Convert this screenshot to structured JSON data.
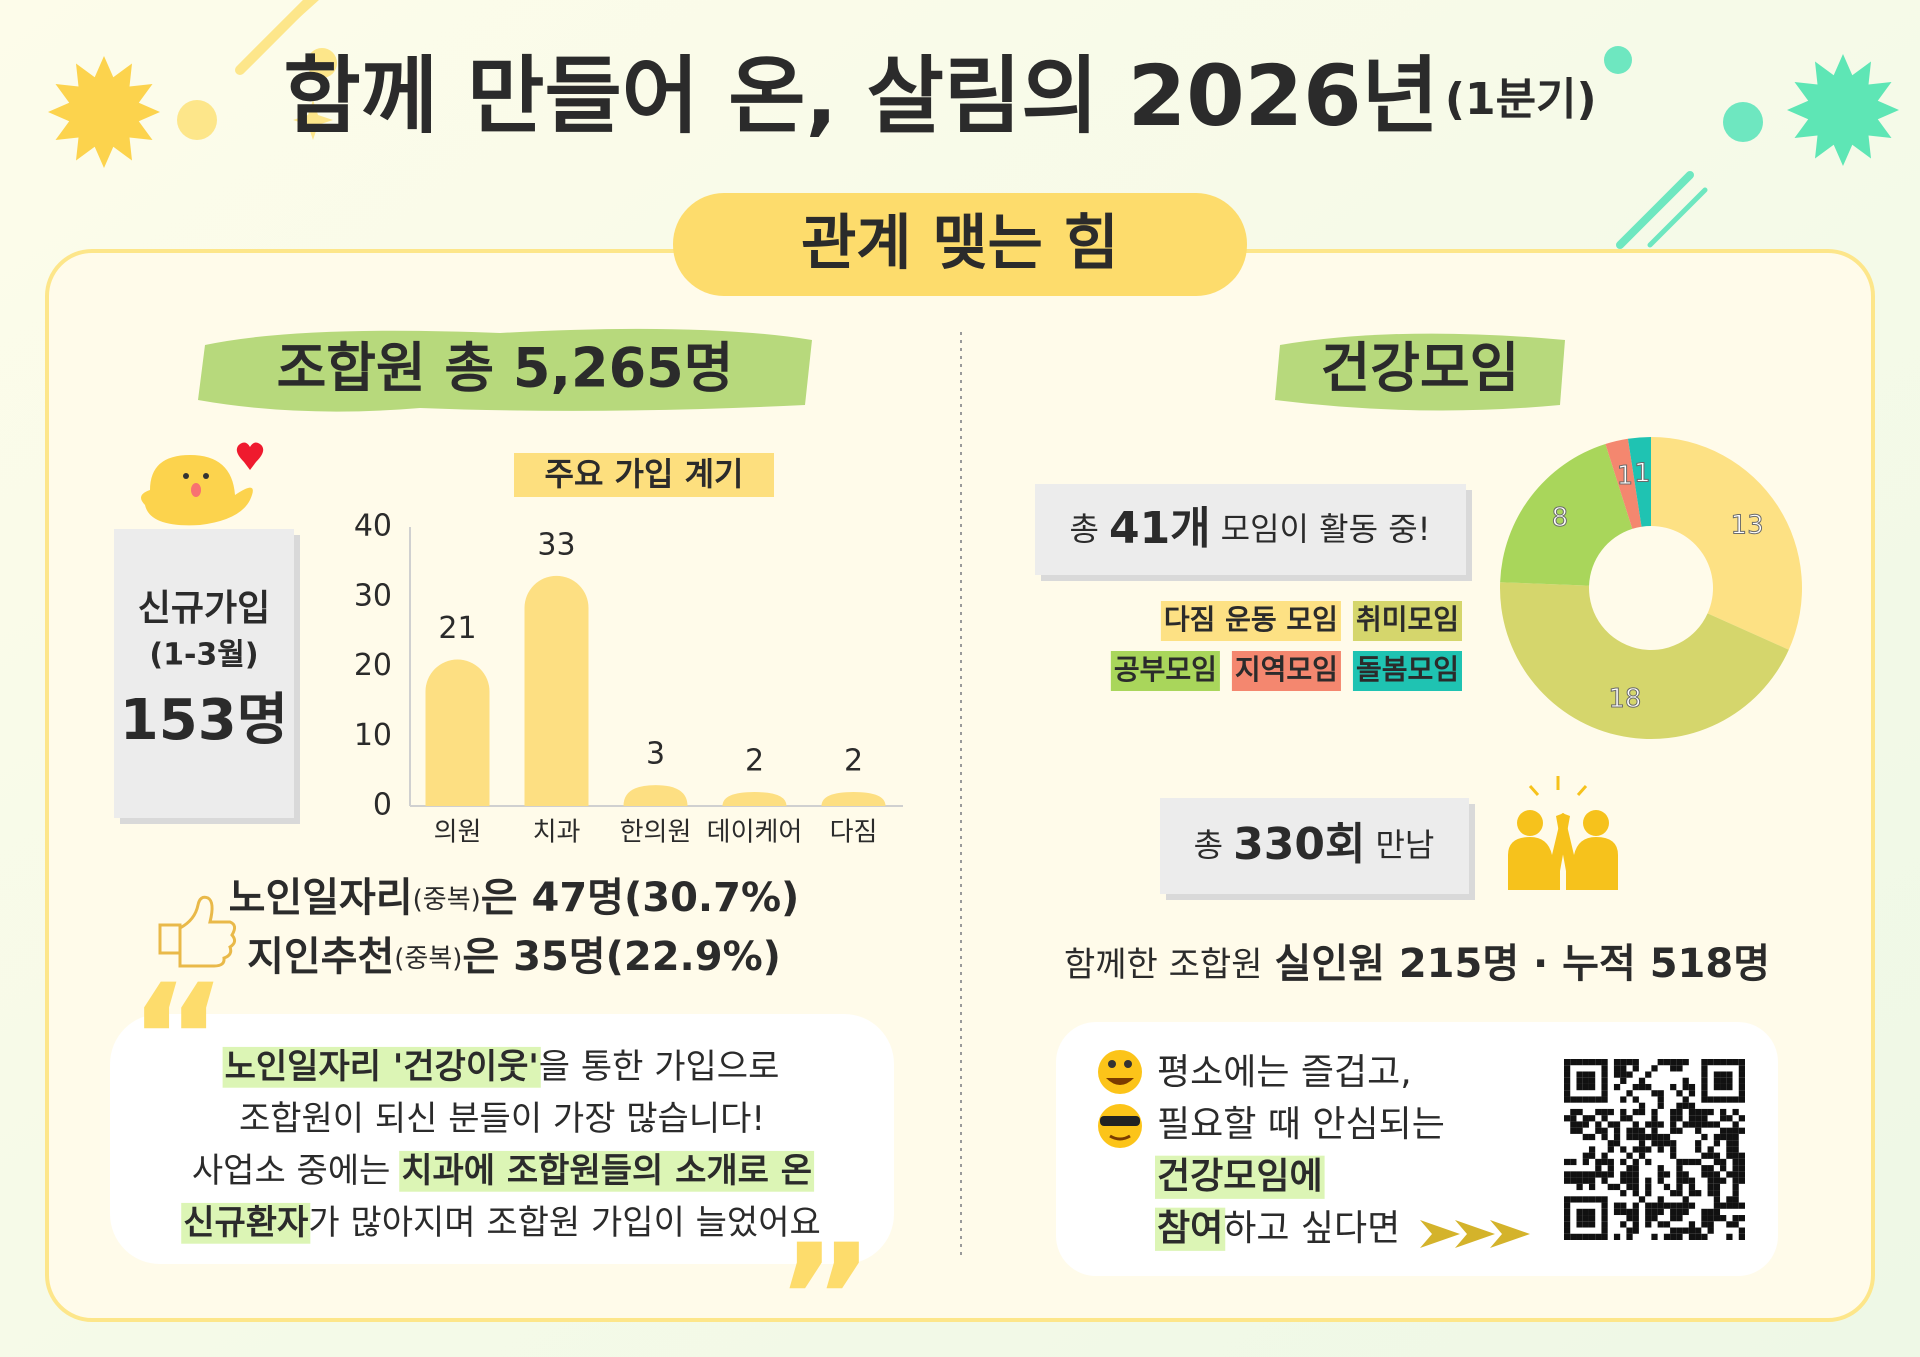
{
  "header": {
    "title": "함께 만들어 온, 살림의 2026년",
    "title_note": "(1분기)",
    "banner": "관계 맺는 힘"
  },
  "left": {
    "heading": "조합원 총 5,265명",
    "new_card": {
      "label": "신규가입",
      "period": "(1-3월)",
      "count": "153명"
    },
    "stats": [
      {
        "subject": "노인일자리",
        "note": "(중복)",
        "result": "은 47명(30.7%)"
      },
      {
        "subject": "지인추천",
        "note": "(중복)",
        "result": "은 35명(22.9%)"
      }
    ],
    "quote": [
      [
        {
          "text": "노인일자리 '건강이웃'",
          "highlight": true
        },
        {
          "text": "을 통한 가입으로",
          "highlight": false
        }
      ],
      [
        {
          "text": "조합원이 되신 분들이 가장 많습니다!",
          "highlight": false
        }
      ],
      [
        {
          "text": "사업소 중에는 ",
          "highlight": false
        },
        {
          "text": "치과에 조합원들의 소개로 온",
          "highlight": true
        }
      ],
      [
        {
          "text": "신규환자",
          "highlight": true
        },
        {
          "text": "가 많아지며 조합원 가입이 늘었어요",
          "highlight": false
        }
      ]
    ]
  },
  "right": {
    "heading": "건강모임",
    "groups": {
      "prefix": "총",
      "number": "41개",
      "suffix": "모임이 활동 중!"
    },
    "meetings": {
      "prefix": "총",
      "number": "330회",
      "suffix": "만남"
    },
    "members": {
      "lead": "함께한 조합원",
      "main": "실인원 215명 · 누적 518명"
    },
    "invite": [
      [
        {
          "text": "평소에는 즐겁고,",
          "highlight": false
        }
      ],
      [
        {
          "text": "필요할 때 안심되는",
          "highlight": false
        }
      ],
      [
        {
          "text": "건강모임에",
          "highlight": true
        }
      ],
      [
        {
          "text": "참여",
          "highlight": true
        },
        {
          "text": "하고 싶다면",
          "highlight": false
        }
      ]
    ]
  },
  "chart_data": [
    {
      "type": "bar",
      "title": "주요 가입 계기",
      "categories": [
        "의원",
        "치과",
        "한의원",
        "데이케어",
        "다짐"
      ],
      "values": [
        21,
        33,
        3,
        2,
        2
      ],
      "color": "#fddf82",
      "ylim": [
        0,
        40
      ],
      "yticks": [
        0,
        10,
        20,
        30,
        40
      ],
      "grid": false
    },
    {
      "type": "pie",
      "categories": [
        "다짐 운동 모임",
        "취미모임",
        "공부모임",
        "지역모임",
        "돌봄모임"
      ],
      "values": [
        13,
        18,
        8,
        1,
        1
      ],
      "colors": [
        "#fde184",
        "#d5d66c",
        "#a9d65b",
        "#f4876f",
        "#1fc3b2"
      ]
    }
  ]
}
